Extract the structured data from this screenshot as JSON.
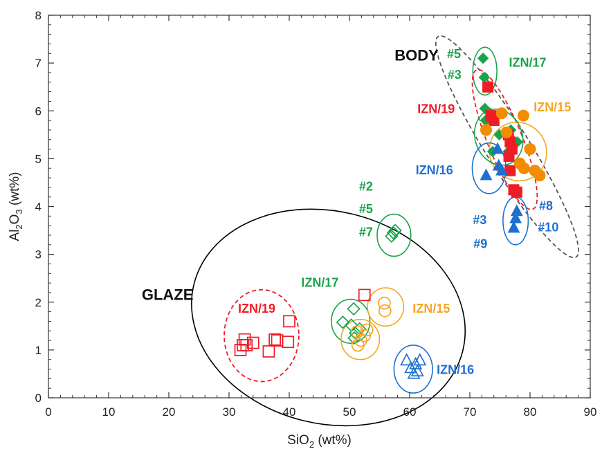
{
  "chart_data": {
    "type": "scatter",
    "title": "",
    "xlabel": {
      "prefix": "SiO",
      "sub": "2",
      "suffix": " (wt%)"
    },
    "ylabel": {
      "prefix": "Al",
      "sub1": "2",
      "mid": "O",
      "sub2": "3",
      "suffix": " (wt%)"
    },
    "xlim": [
      0,
      90
    ],
    "ylim": [
      0,
      8
    ],
    "xticks": [
      "0",
      "10",
      "20",
      "30",
      "40",
      "50",
      "60",
      "70",
      "80",
      "90"
    ],
    "yticks": [
      "0",
      "1",
      "2",
      "3",
      "4",
      "5",
      "6",
      "7",
      "8"
    ],
    "grid": false,
    "colors": {
      "IZN/15": "#f5a623",
      "IZN/16": "#1f6fd1",
      "IZN/17": "#1aa34a",
      "IZN/19": "#ee1c25",
      "body_orange": "#f28c00",
      "envelope": "#000000"
    },
    "group_labels": [
      {
        "text": "BODY",
        "x": 57.5,
        "y": 7.05
      },
      {
        "text": "GLAZE",
        "x": 15.5,
        "y": 2.05
      }
    ],
    "annotations": [
      {
        "text": "#5",
        "x": 66.2,
        "y": 7.1,
        "color": "#1aa34a"
      },
      {
        "text": "#3",
        "x": 66.3,
        "y": 6.67,
        "color": "#1aa34a"
      },
      {
        "text": "IZN/17",
        "x": 76.5,
        "y": 6.92,
        "color": "#1aa34a"
      },
      {
        "text": "IZN/19",
        "x": 61.3,
        "y": 5.95,
        "color": "#ee1c25"
      },
      {
        "text": "IZN/15",
        "x": 80.6,
        "y": 5.99,
        "color": "#f5a623"
      },
      {
        "text": "IZN/16",
        "x": 61.0,
        "y": 4.67,
        "color": "#1f6fd1"
      },
      {
        "text": "#2",
        "x": 51.6,
        "y": 4.33,
        "color": "#1aa34a"
      },
      {
        "text": "#5",
        "x": 51.6,
        "y": 3.86,
        "color": "#1aa34a"
      },
      {
        "text": "#7",
        "x": 51.6,
        "y": 3.38,
        "color": "#1aa34a"
      },
      {
        "text": "#8",
        "x": 81.5,
        "y": 3.93,
        "color": "#1f6fd1"
      },
      {
        "text": "#3",
        "x": 70.5,
        "y": 3.63,
        "color": "#1f6fd1"
      },
      {
        "text": "#10",
        "x": 81.3,
        "y": 3.48,
        "color": "#1f6fd1"
      },
      {
        "text": "#9",
        "x": 70.6,
        "y": 3.13,
        "color": "#1f6fd1"
      },
      {
        "text": "IZN/17",
        "x": 42.0,
        "y": 2.32,
        "color": "#1aa34a"
      },
      {
        "text": "IZN/19",
        "x": 31.5,
        "y": 1.78,
        "color": "#ee1c25"
      },
      {
        "text": "IZN/15",
        "x": 60.5,
        "y": 1.78,
        "color": "#f5a623"
      },
      {
        "text": "IZN/16",
        "x": 64.5,
        "y": 0.5,
        "color": "#1f6fd1"
      }
    ],
    "ellipses": [
      {
        "group": "GLAZE",
        "cx": 46.5,
        "cy": 1.68,
        "rx": 23.0,
        "ry": 2.22,
        "rot": 14,
        "color": "#000000",
        "dash": false
      },
      {
        "group": "BODY",
        "cx": 76.2,
        "cy": 5.25,
        "rx": 3.6,
        "ry": 2.72,
        "rot": -32,
        "color": "#555555",
        "dash": true
      },
      {
        "group": "IZN/19 glaze",
        "cx": 35.4,
        "cy": 1.3,
        "rx": 6.2,
        "ry": 0.96,
        "rot": 0,
        "color": "#ee1c25",
        "dash": true
      },
      {
        "group": "IZN/17 glaze",
        "cx": 50.2,
        "cy": 1.6,
        "rx": 3.2,
        "ry": 0.46,
        "rot": 0,
        "color": "#1aa34a",
        "dash": false
      },
      {
        "group": "IZN/15 glaze",
        "cx": 51.8,
        "cy": 1.22,
        "rx": 3.2,
        "ry": 0.42,
        "rot": 0,
        "color": "#f5a623",
        "dash": false
      },
      {
        "group": "IZN/15 glaze b",
        "cx": 56.0,
        "cy": 1.9,
        "rx": 3.0,
        "ry": 0.4,
        "rot": 0,
        "color": "#f5a623",
        "dash": false
      },
      {
        "group": "IZN/17 glaze b",
        "cx": 57.4,
        "cy": 3.4,
        "rx": 2.8,
        "ry": 0.44,
        "rot": 0,
        "color": "#1aa34a",
        "dash": false
      },
      {
        "group": "IZN/16 glaze",
        "cx": 60.6,
        "cy": 0.6,
        "rx": 3.2,
        "ry": 0.5,
        "rot": 0,
        "color": "#1f6fd1",
        "dash": false
      },
      {
        "group": "IZN/17 body a",
        "cx": 72.5,
        "cy": 6.83,
        "rx": 2.0,
        "ry": 0.5,
        "rot": 0,
        "color": "#1aa34a",
        "dash": false
      },
      {
        "group": "IZN/19 body",
        "cx": 75.8,
        "cy": 5.4,
        "rx": 2.9,
        "ry": 1.57,
        "rot": -22,
        "color": "#ee1c25",
        "dash": true
      },
      {
        "group": "IZN/15 body",
        "cx": 78.0,
        "cy": 5.15,
        "rx": 4.7,
        "ry": 0.62,
        "rot": -30,
        "color": "#f5a623",
        "dash": false
      },
      {
        "group": "IZN/17 body b",
        "cx": 74.8,
        "cy": 5.45,
        "rx": 3.9,
        "ry": 0.6,
        "rot": -21,
        "color": "#1aa34a",
        "dash": false
      },
      {
        "group": "IZN/16 body",
        "cx": 73.2,
        "cy": 4.8,
        "rx": 2.8,
        "ry": 0.53,
        "rot": 0,
        "color": "#1f6fd1",
        "dash": false
      },
      {
        "group": "IZN/16 body b",
        "cx": 77.6,
        "cy": 3.7,
        "rx": 2.1,
        "ry": 0.5,
        "rot": 0,
        "color": "#1f6fd1",
        "dash": false
      }
    ],
    "series": [
      {
        "name": "IZN/19 glaze",
        "marker": "square",
        "filled": false,
        "color": "#ee1c25",
        "points": [
          [
            31.9,
            1.0
          ],
          [
            32.3,
            1.1
          ],
          [
            32.6,
            1.22
          ],
          [
            32.9,
            1.1
          ],
          [
            34.0,
            1.15
          ],
          [
            36.6,
            0.97
          ],
          [
            37.6,
            1.22
          ],
          [
            38.0,
            1.2
          ],
          [
            39.8,
            1.17
          ],
          [
            40.0,
            1.6
          ],
          [
            52.5,
            2.15
          ]
        ]
      },
      {
        "name": "IZN/17 glaze",
        "marker": "diamond",
        "filled": false,
        "color": "#1aa34a",
        "points": [
          [
            48.9,
            1.58
          ],
          [
            50.3,
            1.52
          ],
          [
            50.7,
            1.86
          ],
          [
            51.0,
            1.35
          ],
          [
            50.8,
            1.25
          ],
          [
            51.7,
            1.44
          ],
          [
            57.0,
            3.38
          ],
          [
            57.3,
            3.45
          ],
          [
            57.6,
            3.5
          ]
        ]
      },
      {
        "name": "IZN/15 glaze",
        "marker": "circle",
        "filled": false,
        "color": "#f5a623",
        "points": [
          [
            51.4,
            1.1
          ],
          [
            51.9,
            1.2
          ],
          [
            52.5,
            1.3
          ],
          [
            51.3,
            1.38
          ],
          [
            52.9,
            1.42
          ],
          [
            55.8,
            1.98
          ],
          [
            55.9,
            1.82
          ]
        ]
      },
      {
        "name": "IZN/16 glaze",
        "marker": "triangle",
        "filled": false,
        "color": "#1f6fd1",
        "points": [
          [
            59.5,
            0.78
          ],
          [
            60.2,
            0.62
          ],
          [
            60.7,
            0.5
          ],
          [
            61.0,
            0.7
          ],
          [
            61.3,
            0.55
          ],
          [
            61.7,
            0.78
          ]
        ]
      },
      {
        "name": "IZN/17 body",
        "marker": "diamond",
        "filled": true,
        "color": "#1aa34a",
        "points": [
          [
            72.2,
            7.1
          ],
          [
            72.4,
            6.7
          ],
          [
            72.6,
            5.8
          ],
          [
            73.4,
            5.95
          ],
          [
            72.8,
            5.6
          ],
          [
            74.9,
            5.5
          ],
          [
            76.8,
            5.6
          ],
          [
            77.9,
            5.35
          ],
          [
            73.8,
            5.15
          ],
          [
            76.4,
            5.15
          ],
          [
            72.5,
            6.05
          ]
        ]
      },
      {
        "name": "IZN/19 body",
        "marker": "square",
        "filled": true,
        "color": "#ee1c25",
        "points": [
          [
            73.0,
            6.5
          ],
          [
            73.5,
            5.9
          ],
          [
            76.4,
            5.5
          ],
          [
            76.7,
            5.35
          ],
          [
            77.0,
            5.2
          ],
          [
            76.5,
            5.05
          ],
          [
            74.0,
            5.8
          ],
          [
            77.3,
            4.35
          ],
          [
            77.8,
            4.3
          ],
          [
            76.7,
            4.75
          ]
        ]
      },
      {
        "name": "IZN/15 body",
        "marker": "circle",
        "filled": true,
        "color": "#f28c00",
        "points": [
          [
            72.7,
            5.6
          ],
          [
            75.3,
            5.95
          ],
          [
            78.9,
            5.9
          ],
          [
            76.1,
            5.55
          ],
          [
            80.0,
            5.2
          ],
          [
            78.3,
            4.9
          ],
          [
            79.0,
            4.8
          ],
          [
            80.8,
            4.75
          ],
          [
            81.6,
            4.65
          ]
        ]
      },
      {
        "name": "IZN/16 body",
        "marker": "triangle",
        "filled": true,
        "color": "#1f6fd1",
        "points": [
          [
            72.7,
            4.65
          ],
          [
            74.8,
            4.85
          ],
          [
            75.3,
            4.75
          ],
          [
            74.6,
            5.2
          ],
          [
            77.3,
            3.55
          ],
          [
            77.6,
            3.75
          ],
          [
            77.8,
            3.9
          ]
        ]
      }
    ]
  }
}
